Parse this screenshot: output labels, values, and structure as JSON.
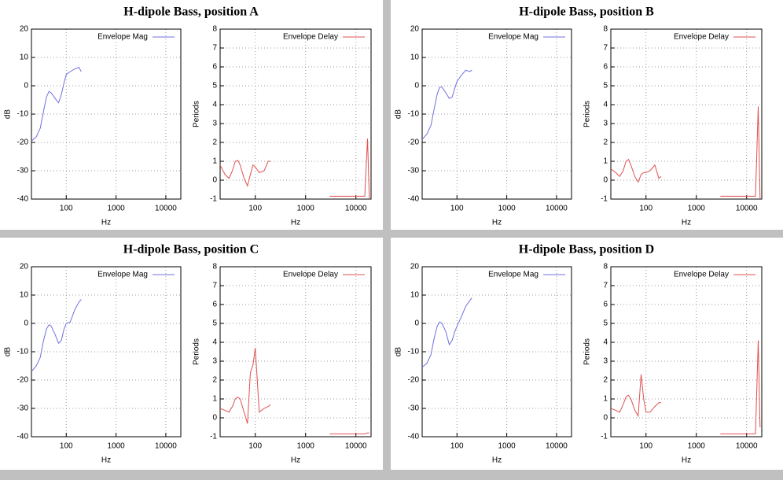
{
  "chart_data": [
    {
      "type": "line",
      "title": "H-dipole Bass, position A",
      "xlabel": "Hz",
      "ylabel": "dB",
      "xscale": "log",
      "xlim": [
        20,
        20000
      ],
      "xticks": [
        100,
        1000,
        10000
      ],
      "ylim": [
        -40,
        20
      ],
      "yticks": [
        -40,
        -30,
        -20,
        -10,
        0,
        10,
        20
      ],
      "grid": true,
      "legend": "upper right",
      "x": [
        20,
        25,
        30,
        35,
        40,
        45,
        50,
        60,
        70,
        80,
        90,
        100,
        120,
        150,
        180,
        200
      ],
      "series": [
        {
          "name": "Envelope Mag",
          "color": "#7070e0",
          "values": [
            -19.5,
            -18,
            -15,
            -9,
            -4,
            -2,
            -2.5,
            -4.5,
            -6,
            -3,
            1,
            4,
            5,
            6,
            6.5,
            5
          ]
        }
      ]
    },
    {
      "type": "line",
      "xlabel": "Hz",
      "ylabel": "Periods",
      "xscale": "log",
      "xlim": [
        20,
        20000
      ],
      "xticks": [
        100,
        1000,
        10000
      ],
      "ylim": [
        -1,
        8
      ],
      "yticks": [
        -1,
        0,
        1,
        2,
        3,
        4,
        5,
        6,
        7,
        8
      ],
      "grid": true,
      "legend": "upper right",
      "x": [
        20,
        25,
        30,
        35,
        40,
        45,
        50,
        60,
        70,
        80,
        90,
        100,
        120,
        150,
        180,
        200,
        1000,
        3000,
        6000,
        10000,
        15000,
        17000,
        18500
      ],
      "series": [
        {
          "name": "Envelope Delay",
          "color": "#e05050",
          "values": [
            0.8,
            0.3,
            0.1,
            0.5,
            1.0,
            1.05,
            0.8,
            0.1,
            -0.3,
            0.3,
            0.8,
            0.7,
            0.4,
            0.5,
            1.0,
            1.0,
            null,
            -0.85,
            -0.85,
            -0.85,
            -0.85,
            2.2,
            -1
          ]
        }
      ]
    },
    {
      "type": "line",
      "title": "H-dipole Bass, position B",
      "xlabel": "Hz",
      "ylabel": "dB",
      "xscale": "log",
      "xlim": [
        20,
        20000
      ],
      "xticks": [
        100,
        1000,
        10000
      ],
      "ylim": [
        -40,
        20
      ],
      "yticks": [
        -40,
        -30,
        -20,
        -10,
        0,
        10,
        20
      ],
      "grid": true,
      "legend": "upper right",
      "x": [
        20,
        25,
        30,
        35,
        40,
        45,
        50,
        60,
        70,
        80,
        90,
        100,
        120,
        150,
        180,
        200
      ],
      "series": [
        {
          "name": "Envelope Mag",
          "color": "#7070e0",
          "values": [
            -19,
            -17,
            -14,
            -8,
            -3,
            -0.5,
            -0.5,
            -2.5,
            -4.5,
            -4,
            -1,
            1.5,
            3.5,
            5.5,
            5,
            5.5
          ]
        }
      ]
    },
    {
      "type": "line",
      "xlabel": "Hz",
      "ylabel": "Periods",
      "xscale": "log",
      "xlim": [
        20,
        20000
      ],
      "xticks": [
        100,
        1000,
        10000
      ],
      "ylim": [
        -1,
        8
      ],
      "yticks": [
        -1,
        0,
        1,
        2,
        3,
        4,
        5,
        6,
        7,
        8
      ],
      "grid": true,
      "legend": "upper right",
      "x": [
        20,
        25,
        30,
        35,
        40,
        45,
        50,
        60,
        70,
        80,
        90,
        100,
        120,
        150,
        180,
        200,
        1000,
        3000,
        6000,
        10000,
        15000,
        17000,
        18500
      ],
      "series": [
        {
          "name": "Envelope Delay",
          "color": "#e05050",
          "values": [
            0.6,
            0.4,
            0.2,
            0.5,
            1.0,
            1.1,
            0.8,
            0.2,
            -0.1,
            0.3,
            0.4,
            0.4,
            0.5,
            0.8,
            0.1,
            0.2,
            null,
            -0.85,
            -0.85,
            -0.85,
            -0.85,
            3.9,
            -1
          ]
        }
      ]
    },
    {
      "type": "line",
      "title": "H-dipole Bass, position C",
      "xlabel": "Hz",
      "ylabel": "dB",
      "xscale": "log",
      "xlim": [
        20,
        20000
      ],
      "xticks": [
        100,
        1000,
        10000
      ],
      "ylim": [
        -40,
        20
      ],
      "yticks": [
        -40,
        -30,
        -20,
        -10,
        0,
        10,
        20
      ],
      "grid": true,
      "legend": "upper right",
      "x": [
        20,
        25,
        30,
        35,
        40,
        45,
        50,
        60,
        70,
        80,
        90,
        100,
        120,
        150,
        180,
        200
      ],
      "series": [
        {
          "name": "Envelope Mag",
          "color": "#7070e0",
          "values": [
            -17,
            -15,
            -12,
            -6,
            -2,
            -0.5,
            -1,
            -4,
            -7,
            -6,
            -2,
            0,
            0.5,
            5,
            7.5,
            8.5
          ]
        }
      ]
    },
    {
      "type": "line",
      "xlabel": "Hz",
      "ylabel": "Periods",
      "xscale": "log",
      "xlim": [
        20,
        20000
      ],
      "xticks": [
        100,
        1000,
        10000
      ],
      "ylim": [
        -1,
        8
      ],
      "yticks": [
        -1,
        0,
        1,
        2,
        3,
        4,
        5,
        6,
        7,
        8
      ],
      "grid": true,
      "legend": "upper right",
      "x": [
        20,
        25,
        30,
        35,
        40,
        45,
        50,
        60,
        70,
        80,
        90,
        100,
        120,
        150,
        180,
        200,
        1000,
        3000,
        6000,
        10000,
        15000,
        17000,
        18500
      ],
      "series": [
        {
          "name": "Envelope Delay",
          "color": "#e05050",
          "values": [
            0.5,
            0.4,
            0.3,
            0.6,
            1.0,
            1.1,
            1.0,
            0.3,
            -0.3,
            2.4,
            2.8,
            3.7,
            0.3,
            0.5,
            0.6,
            0.7,
            null,
            -0.85,
            -0.85,
            -0.85,
            -0.85,
            -0.8,
            -0.8
          ]
        }
      ]
    },
    {
      "type": "line",
      "title": "H-dipole Bass, position D",
      "xlabel": "Hz",
      "ylabel": "dB",
      "xscale": "log",
      "xlim": [
        20,
        20000
      ],
      "xticks": [
        100,
        1000,
        10000
      ],
      "ylim": [
        -40,
        20
      ],
      "yticks": [
        -40,
        -30,
        -20,
        -10,
        0,
        10,
        20
      ],
      "grid": true,
      "legend": "upper right",
      "x": [
        20,
        25,
        30,
        35,
        40,
        45,
        50,
        60,
        70,
        80,
        90,
        100,
        120,
        150,
        180,
        200
      ],
      "series": [
        {
          "name": "Envelope Mag",
          "color": "#7070e0",
          "values": [
            -15.5,
            -14,
            -11,
            -5,
            -1,
            0.5,
            0,
            -3,
            -7.5,
            -6,
            -3,
            -1,
            2,
            6,
            8,
            9
          ]
        }
      ]
    },
    {
      "type": "line",
      "xlabel": "Hz",
      "ylabel": "Periods",
      "xscale": "log",
      "xlim": [
        20,
        20000
      ],
      "xticks": [
        100,
        1000,
        10000
      ],
      "ylim": [
        -1,
        8
      ],
      "yticks": [
        -1,
        0,
        1,
        2,
        3,
        4,
        5,
        6,
        7,
        8
      ],
      "grid": true,
      "legend": "upper right",
      "x": [
        20,
        25,
        30,
        35,
        40,
        45,
        50,
        60,
        70,
        80,
        90,
        100,
        120,
        150,
        180,
        200,
        1000,
        3000,
        6000,
        10000,
        15000,
        17000,
        18500
      ],
      "series": [
        {
          "name": "Envelope Delay",
          "color": "#e05050",
          "values": [
            0.5,
            0.4,
            0.3,
            0.7,
            1.1,
            1.2,
            1.0,
            0.4,
            0.1,
            2.3,
            1.0,
            0.3,
            0.3,
            0.6,
            0.8,
            0.8,
            null,
            -0.85,
            -0.85,
            -0.85,
            -0.85,
            4.1,
            -0.5
          ]
        }
      ]
    }
  ]
}
